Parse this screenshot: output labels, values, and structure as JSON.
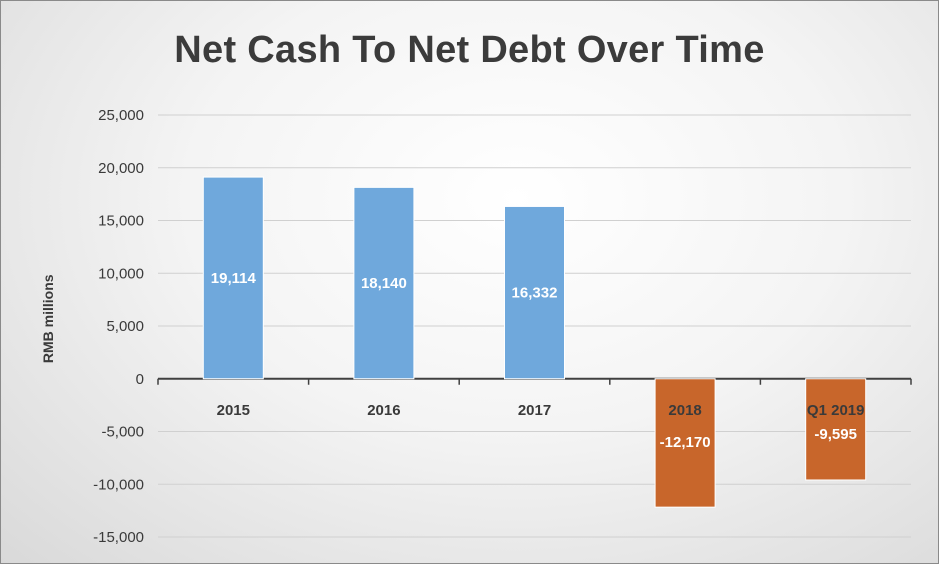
{
  "chart_data": {
    "type": "bar",
    "title": "Net Cash To Net Debt Over Time",
    "xlabel": "",
    "ylabel": "RMB millions",
    "categories": [
      "2015",
      "2016",
      "2017",
      "2018",
      "Q1 2019"
    ],
    "values": [
      19114,
      18140,
      16332,
      -12170,
      -9595
    ],
    "data_labels": [
      "19,114",
      "18,140",
      "16,332",
      "-12,170",
      "-9,595"
    ],
    "yticks": [
      "25,000",
      "20,000",
      "15,000",
      "10,000",
      "5,000",
      "0",
      "-5,000",
      "-10,000",
      "-15,000"
    ],
    "ylim": [
      -15000,
      25000
    ],
    "grid": true,
    "legend": "none",
    "colors": {
      "positive": "#6fa8dc",
      "negative": "#c8662b",
      "grid": "#d0d0d0",
      "axis": "#404040"
    }
  }
}
